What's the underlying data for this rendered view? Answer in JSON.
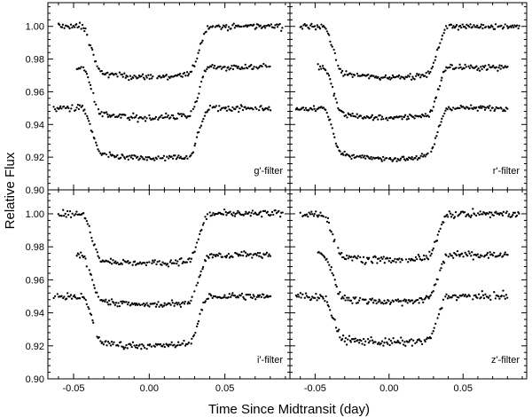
{
  "chart_data": {
    "type": "scatter",
    "layout": "2x2 grid, shared axes",
    "xlabel": "Time Since Midtransit (day)",
    "ylabel": "Relative Flux",
    "xlim": [
      -0.067,
      0.093
    ],
    "ylim": [
      0.9,
      1.0145
    ],
    "xticks": [
      -0.05,
      0.0,
      0.05
    ],
    "xtick_labels": [
      "-0.05",
      "0.00",
      "0.05"
    ],
    "yticks": [
      0.9,
      0.92,
      0.94,
      0.96,
      0.98,
      1.0
    ],
    "ytick_labels": [
      "0.90",
      "0.92",
      "0.94",
      "0.96",
      "0.98",
      "1.00"
    ],
    "panels": [
      {
        "label": "g'-filter",
        "series": [
          {
            "name": "upper light curve",
            "x_range": [
              -0.06,
              0.088
            ],
            "baseline": 1.0,
            "depth": 0.031,
            "ingress_start": -0.045,
            "ingress_end": -0.031,
            "egress_start": 0.026,
            "egress_end": 0.04,
            "scatter": 0.0025
          },
          {
            "name": "middle light curve",
            "x_range": [
              -0.048,
              0.08
            ],
            "baseline": 0.975,
            "depth": 0.031,
            "ingress_start": -0.045,
            "ingress_end": -0.031,
            "egress_start": 0.026,
            "egress_end": 0.04,
            "scatter": 0.0025
          },
          {
            "name": "lower light curve",
            "x_range": [
              -0.063,
              0.08
            ],
            "baseline": 0.95,
            "depth": 0.031,
            "ingress_start": -0.045,
            "ingress_end": -0.031,
            "egress_start": 0.026,
            "egress_end": 0.04,
            "scatter": 0.0025
          }
        ]
      },
      {
        "label": "r'-filter",
        "series": [
          {
            "name": "upper light curve",
            "x_range": [
              -0.06,
              0.088
            ],
            "baseline": 1.0,
            "depth": 0.031,
            "ingress_start": -0.045,
            "ingress_end": -0.031,
            "egress_start": 0.026,
            "egress_end": 0.04,
            "scatter": 0.0022
          },
          {
            "name": "middle light curve",
            "x_range": [
              -0.048,
              0.08
            ],
            "baseline": 0.975,
            "depth": 0.031,
            "ingress_start": -0.045,
            "ingress_end": -0.031,
            "egress_start": 0.026,
            "egress_end": 0.04,
            "scatter": 0.0022
          },
          {
            "name": "lower light curve",
            "x_range": [
              -0.063,
              0.08
            ],
            "baseline": 0.95,
            "depth": 0.031,
            "ingress_start": -0.045,
            "ingress_end": -0.031,
            "egress_start": 0.026,
            "egress_end": 0.04,
            "scatter": 0.0022
          }
        ]
      },
      {
        "label": "i'-filter",
        "series": [
          {
            "name": "upper light curve",
            "x_range": [
              -0.06,
              0.088
            ],
            "baseline": 1.0,
            "depth": 0.03,
            "ingress_start": -0.045,
            "ingress_end": -0.031,
            "egress_start": 0.026,
            "egress_end": 0.04,
            "scatter": 0.0025
          },
          {
            "name": "middle light curve",
            "x_range": [
              -0.048,
              0.08
            ],
            "baseline": 0.975,
            "depth": 0.03,
            "ingress_start": -0.045,
            "ingress_end": -0.031,
            "egress_start": 0.026,
            "egress_end": 0.04,
            "scatter": 0.0025
          },
          {
            "name": "lower light curve",
            "x_range": [
              -0.063,
              0.08
            ],
            "baseline": 0.95,
            "depth": 0.03,
            "ingress_start": -0.045,
            "ingress_end": -0.031,
            "egress_start": 0.026,
            "egress_end": 0.04,
            "scatter": 0.0025
          }
        ]
      },
      {
        "label": "z'-filter",
        "series": [
          {
            "name": "upper light curve",
            "x_range": [
              -0.06,
              0.088
            ],
            "baseline": 1.0,
            "depth": 0.028,
            "ingress_start": -0.045,
            "ingress_end": -0.031,
            "egress_start": 0.026,
            "egress_end": 0.04,
            "scatter": 0.003
          },
          {
            "name": "middle light curve",
            "x_range": [
              -0.048,
              0.08
            ],
            "baseline": 0.975,
            "depth": 0.028,
            "ingress_start": -0.045,
            "ingress_end": -0.031,
            "egress_start": 0.026,
            "egress_end": 0.04,
            "scatter": 0.003
          },
          {
            "name": "lower light curve",
            "x_range": [
              -0.063,
              0.08
            ],
            "baseline": 0.95,
            "depth": 0.028,
            "ingress_start": -0.045,
            "ingress_end": -0.031,
            "egress_start": 0.026,
            "egress_end": 0.04,
            "scatter": 0.003
          }
        ]
      }
    ],
    "marker_color": "#000000",
    "grid": false
  }
}
